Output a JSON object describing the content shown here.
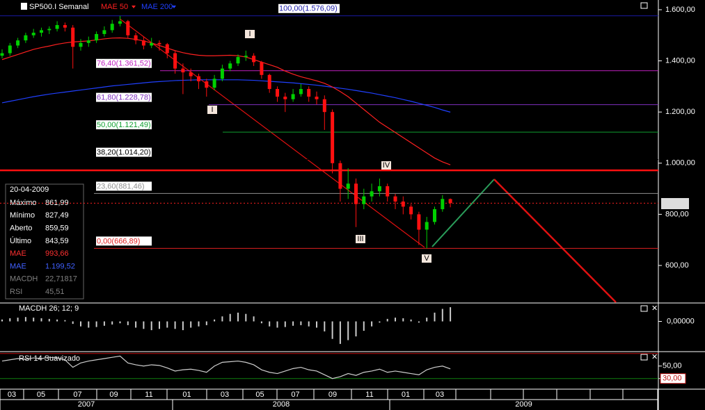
{
  "toolbar": {
    "symbol": "SP500.I Semanal",
    "indicators": [
      {
        "label": "MAE 50",
        "color": "#ff2020"
      },
      {
        "label": "MAE 200",
        "color": "#2040ff"
      }
    ]
  },
  "price": {
    "ylim": [
      456,
      1638
    ],
    "yticks": [
      {
        "value": 1600,
        "label": "1.600,00"
      },
      {
        "value": 1400,
        "label": "1.400,00"
      },
      {
        "value": 1200,
        "label": "1.200,00"
      },
      {
        "value": 1000,
        "label": "1.000,00"
      },
      {
        "value": 800,
        "label": "800,00"
      },
      {
        "value": 600,
        "label": "600,00"
      }
    ],
    "up_color": "#00d000",
    "down_color": "#ff1010",
    "candles": [
      [
        1420,
        1445,
        1410,
        1430
      ],
      [
        1430,
        1470,
        1420,
        1460
      ],
      [
        1460,
        1490,
        1450,
        1480
      ],
      [
        1480,
        1510,
        1470,
        1500
      ],
      [
        1500,
        1525,
        1490,
        1510
      ],
      [
        1510,
        1530,
        1495,
        1520
      ],
      [
        1520,
        1535,
        1505,
        1525
      ],
      [
        1525,
        1555,
        1515,
        1540
      ],
      [
        1540,
        1550,
        1515,
        1530
      ],
      [
        1530,
        1540,
        1370,
        1455
      ],
      [
        1455,
        1485,
        1440,
        1470
      ],
      [
        1470,
        1495,
        1455,
        1480
      ],
      [
        1480,
        1515,
        1470,
        1505
      ],
      [
        1505,
        1535,
        1495,
        1520
      ],
      [
        1520,
        1560,
        1510,
        1545
      ],
      [
        1545,
        1576,
        1535,
        1555
      ],
      [
        1555,
        1560,
        1490,
        1500
      ],
      [
        1500,
        1510,
        1465,
        1480
      ],
      [
        1480,
        1495,
        1445,
        1460
      ],
      [
        1460,
        1490,
        1450,
        1470
      ],
      [
        1470,
        1480,
        1440,
        1465
      ],
      [
        1465,
        1470,
        1410,
        1430
      ],
      [
        1430,
        1440,
        1350,
        1370
      ],
      [
        1370,
        1390,
        1270,
        1355
      ],
      [
        1355,
        1370,
        1320,
        1340
      ],
      [
        1340,
        1350,
        1290,
        1320
      ],
      [
        1320,
        1330,
        1260,
        1295
      ],
      [
        1295,
        1345,
        1285,
        1330
      ],
      [
        1330,
        1385,
        1320,
        1370
      ],
      [
        1370,
        1400,
        1360,
        1390
      ],
      [
        1390,
        1425,
        1380,
        1415
      ],
      [
        1415,
        1440,
        1400,
        1420
      ],
      [
        1420,
        1430,
        1380,
        1395
      ],
      [
        1395,
        1400,
        1330,
        1345
      ],
      [
        1345,
        1350,
        1275,
        1290
      ],
      [
        1290,
        1300,
        1240,
        1260
      ],
      [
        1260,
        1275,
        1200,
        1250
      ],
      [
        1250,
        1290,
        1240,
        1270
      ],
      [
        1270,
        1310,
        1260,
        1290
      ],
      [
        1290,
        1300,
        1240,
        1260
      ],
      [
        1260,
        1280,
        1230,
        1250
      ],
      [
        1250,
        1265,
        1130,
        1200
      ],
      [
        1200,
        1210,
        960,
        1000
      ],
      [
        1000,
        1010,
        850,
        900
      ],
      [
        900,
        980,
        860,
        920
      ],
      [
        920,
        940,
        750,
        840
      ],
      [
        840,
        900,
        820,
        870
      ],
      [
        870,
        920,
        850,
        890
      ],
      [
        890,
        940,
        870,
        910
      ],
      [
        910,
        920,
        850,
        870
      ],
      [
        870,
        880,
        820,
        850
      ],
      [
        850,
        870,
        800,
        830
      ],
      [
        830,
        840,
        780,
        800
      ],
      [
        800,
        810,
        680,
        740
      ],
      [
        740,
        790,
        667,
        770
      ],
      [
        770,
        830,
        760,
        820
      ],
      [
        820,
        875,
        810,
        860
      ],
      [
        859.59,
        861.99,
        827.49,
        843.59
      ]
    ],
    "mae50": [
      1405,
      1415,
      1425,
      1435,
      1445,
      1452,
      1458,
      1465,
      1470,
      1474,
      1476,
      1478,
      1482,
      1486,
      1489,
      1490,
      1488,
      1484,
      1478,
      1470,
      1460,
      1450,
      1440,
      1432,
      1426,
      1422,
      1420,
      1420,
      1421,
      1422,
      1420,
      1415,
      1405,
      1395,
      1385,
      1375,
      1360,
      1348,
      1338,
      1330,
      1322,
      1312,
      1298,
      1280,
      1260,
      1235,
      1210,
      1185,
      1160,
      1140,
      1120,
      1100,
      1080,
      1060,
      1040,
      1020,
      1005,
      993.66
    ],
    "mae200": [
      1236,
      1242,
      1248,
      1254,
      1260,
      1265,
      1270,
      1274,
      1278,
      1282,
      1286,
      1290,
      1294,
      1298,
      1302,
      1305,
      1308,
      1311,
      1314,
      1317,
      1319,
      1321,
      1323,
      1324,
      1325,
      1326,
      1326,
      1326,
      1326,
      1326,
      1326,
      1325,
      1324,
      1322,
      1320,
      1318,
      1316,
      1314,
      1311,
      1308,
      1305,
      1301,
      1297,
      1293,
      1289,
      1284,
      1279,
      1274,
      1268,
      1262,
      1256,
      1249,
      1242,
      1234,
      1226,
      1218,
      1208,
      1199.52
    ],
    "fib": [
      {
        "label": "100,00(1.576,09)",
        "value": 1576.09,
        "color": "#1a1aa8"
      },
      {
        "label": "76,40(1.361,52)",
        "value": 1361.52,
        "color": "#c020c0"
      },
      {
        "label": "61,80(1.228,78)",
        "value": 1228.78,
        "color": "#8030c0"
      },
      {
        "label": "50,00(1.121,49)",
        "value": 1121.49,
        "color": "#10a030"
      },
      {
        "label": "38,20(1.014,20)",
        "value": 1014.2,
        "color": "#000000"
      },
      {
        "label": "23,60(881,46)",
        "value": 881.46,
        "color": "#909090"
      },
      {
        "label": "0,00(666,89)",
        "value": 666.89,
        "color": "#e02020"
      }
    ],
    "resistance": 972,
    "waves": [
      "I",
      "I",
      "IV",
      "III",
      "V"
    ]
  },
  "info": {
    "date": "20-04-2009",
    "rows": [
      {
        "label": "Máximo",
        "value": "861,99",
        "color": "#ffffff"
      },
      {
        "label": "Mínimo",
        "value": "827,49",
        "color": "#ffffff"
      },
      {
        "label": "Aberto",
        "value": "859,59",
        "color": "#ffffff"
      },
      {
        "label": "Último",
        "value": "843,59",
        "color": "#ffffff"
      },
      {
        "label": "MAE",
        "value": "993,66",
        "color": "#ff3030"
      },
      {
        "label": "MAE",
        "value": "1.199,52",
        "color": "#4060ff"
      },
      {
        "label": "MACDH",
        "value": "22,71817",
        "color": "#808080"
      },
      {
        "label": "RSI",
        "value": "45,51",
        "color": "#808080"
      }
    ]
  },
  "macdh": {
    "title": "MACDH 26; 12; 9",
    "ylim": [
      -45,
      25
    ],
    "yticks": [
      {
        "value": 0,
        "label": "0,00000"
      }
    ],
    "values": [
      3,
      5,
      6,
      7,
      6,
      5,
      4,
      3,
      2,
      -4,
      -8,
      -10,
      -9,
      -7,
      -5,
      -3,
      -6,
      -10,
      -12,
      -14,
      -12,
      -10,
      -12,
      -14,
      -10,
      -8,
      -6,
      3,
      8,
      12,
      14,
      12,
      8,
      -3,
      -8,
      -10,
      -9,
      -7,
      -6,
      -8,
      -10,
      -16,
      -28,
      -36,
      -30,
      -24,
      -15,
      -8,
      -2,
      4,
      6,
      5,
      3,
      -2,
      6,
      14,
      20,
      22.71817
    ]
  },
  "rsi": {
    "title": "RSI 14 Suavizado",
    "ylim": [
      13,
      72
    ],
    "yticks": [
      {
        "value": 50,
        "label": "50,00"
      },
      {
        "value": 30,
        "label": "30,00"
      }
    ],
    "levels": [
      {
        "value": 70,
        "color": "#c01010"
      },
      {
        "value": 30,
        "color": "#108010"
      }
    ],
    "values": [
      58,
      60,
      62,
      61,
      63,
      62,
      64,
      63,
      60,
      48,
      55,
      58,
      60,
      62,
      64,
      66,
      55,
      52,
      50,
      52,
      51,
      47,
      42,
      44,
      45,
      43,
      40,
      50,
      56,
      57,
      58,
      56,
      52,
      44,
      40,
      38,
      42,
      46,
      48,
      44,
      42,
      36,
      30,
      33,
      38,
      35,
      40,
      42,
      45,
      40,
      42,
      40,
      38,
      36,
      44,
      48,
      50,
      45.51
    ]
  },
  "xaxis": {
    "months": [
      "03",
      "05",
      "07",
      "09",
      "11",
      "01",
      "03",
      "05",
      "07",
      "09",
      "11",
      "01",
      "03"
    ],
    "years": [
      "2007",
      "2008",
      "2009"
    ]
  }
}
